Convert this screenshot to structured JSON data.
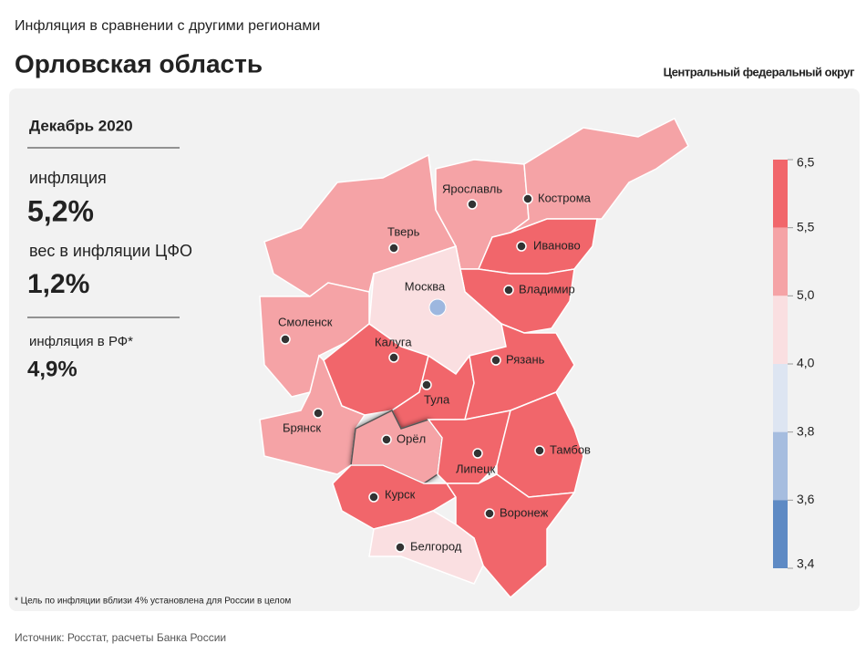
{
  "header": {
    "subtitle": "Инфляция в сравнении с другими регионами",
    "title": "Орловская область",
    "district": "Центральный федеральный округ"
  },
  "panel": {
    "period": "Декабрь 2020",
    "items": [
      {
        "label": "инфляция",
        "value": "5,2%"
      },
      {
        "label": "вес в инфляции ЦФО",
        "value": "1,2%"
      },
      {
        "label": "инфляция в РФ*",
        "value": "4,9%"
      }
    ]
  },
  "legend": {
    "ticks": [
      {
        "value": 6.5,
        "label": "6,5"
      },
      {
        "value": 5.5,
        "label": "5,5"
      },
      {
        "value": 5.0,
        "label": "5,0"
      },
      {
        "value": 4.0,
        "label": "4,0"
      },
      {
        "value": 3.8,
        "label": "3,8"
      },
      {
        "value": 3.6,
        "label": "3,6"
      },
      {
        "value": 3.4,
        "label": "3,4"
      }
    ],
    "colors": [
      "#f1666b",
      "#f5a3a6",
      "#fadfe1",
      "#dde5f2",
      "#a6bddf",
      "#5e8ac4"
    ]
  },
  "regions": [
    {
      "name": "Тверь",
      "color": "#f5a3a6"
    },
    {
      "name": "Ярославль",
      "color": "#f5a3a6"
    },
    {
      "name": "Кострома",
      "color": "#f5a3a6"
    },
    {
      "name": "Иваново",
      "color": "#f1666b"
    },
    {
      "name": "Владимир",
      "color": "#f1666b"
    },
    {
      "name": "Москва",
      "color": "#fadfe1"
    },
    {
      "name": "Смоленск",
      "color": "#f5a3a6"
    },
    {
      "name": "Калуга",
      "color": "#f1666b"
    },
    {
      "name": "Тула",
      "color": "#f1666b"
    },
    {
      "name": "Рязань",
      "color": "#f1666b"
    },
    {
      "name": "Брянск",
      "color": "#f5a3a6"
    },
    {
      "name": "Орёл",
      "color": "#f5a3a6"
    },
    {
      "name": "Липецк",
      "color": "#f1666b"
    },
    {
      "name": "Тамбов",
      "color": "#f1666b"
    },
    {
      "name": "Курск",
      "color": "#f1666b"
    },
    {
      "name": "Воронеж",
      "color": "#f1666b"
    },
    {
      "name": "Белгород",
      "color": "#fadfe1"
    }
  ],
  "footnote": "* Цель по инфляции вблизи 4% установлена для России в целом",
  "source": "Источник: Росстат, расчеты Банка России"
}
